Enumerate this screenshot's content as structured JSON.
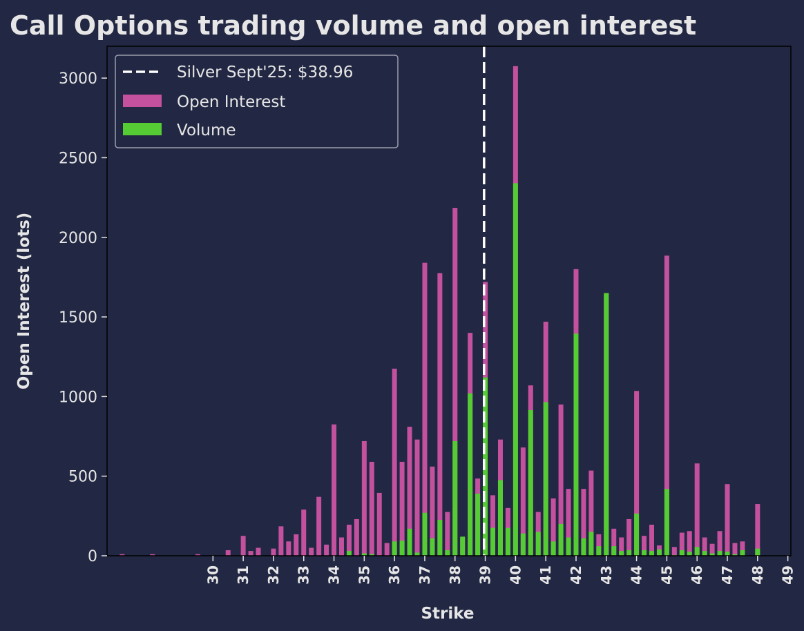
{
  "chart_data": {
    "type": "bar",
    "title": "Call Options trading volume and open interest",
    "xlabel": "Strike",
    "ylabel": "Open Interest (lots)",
    "xlim": [
      26.5,
      49.1
    ],
    "ylim": [
      0,
      3200
    ],
    "xticks": [
      30,
      31,
      32,
      33,
      34,
      35,
      36,
      37,
      38,
      39,
      40,
      41,
      42,
      43,
      44,
      45,
      46,
      47,
      48,
      49
    ],
    "yticks": [
      0,
      500,
      1000,
      1500,
      2000,
      2500,
      3000
    ],
    "grid": false,
    "legend_position": "top-left",
    "reference_line": {
      "label": "Silver Sept'25: $38.96",
      "x": 38.96,
      "color": "#ffffff"
    },
    "colors": {
      "open_interest": "#c3519e",
      "volume": "#55cc33",
      "background": "#222743",
      "text": "#e6e6e6"
    },
    "x": [
      27,
      28,
      29.5,
      30.5,
      31,
      31.25,
      31.5,
      32,
      32.25,
      32.5,
      32.75,
      33,
      33.25,
      33.5,
      33.75,
      34,
      34.25,
      34.5,
      34.75,
      35,
      35.25,
      35.5,
      35.75,
      36,
      36.25,
      36.5,
      36.75,
      37,
      37.25,
      37.5,
      37.75,
      38,
      38.25,
      38.5,
      38.75,
      39,
      39.25,
      39.5,
      39.75,
      40,
      40.25,
      40.5,
      40.75,
      41,
      41.25,
      41.5,
      41.75,
      42,
      42.25,
      42.5,
      42.75,
      43,
      43.25,
      43.5,
      43.75,
      44,
      44.25,
      44.5,
      44.75,
      45,
      45.25,
      45.5,
      45.75,
      46,
      46.25,
      46.5,
      46.75,
      47,
      47.25,
      47.5,
      48
    ],
    "series": [
      {
        "name": "Open Interest",
        "values": [
          10,
          10,
          10,
          35,
          125,
          30,
          50,
          45,
          185,
          90,
          135,
          290,
          50,
          370,
          70,
          825,
          115,
          195,
          230,
          720,
          590,
          395,
          80,
          1175,
          590,
          810,
          730,
          1840,
          560,
          1775,
          275,
          2185,
          115,
          1400,
          485,
          1720,
          380,
          730,
          300,
          3075,
          680,
          1070,
          275,
          1470,
          360,
          950,
          420,
          1800,
          420,
          535,
          135,
          1650,
          170,
          115,
          230,
          1035,
          125,
          195,
          65,
          1885,
          55,
          145,
          155,
          580,
          115,
          75,
          155,
          450,
          80,
          90,
          325
        ]
      },
      {
        "name": "Volume",
        "values": [
          0,
          0,
          0,
          0,
          0,
          0,
          0,
          0,
          0,
          0,
          0,
          0,
          0,
          0,
          0,
          0,
          0,
          30,
          0,
          15,
          10,
          0,
          0,
          90,
          95,
          170,
          20,
          270,
          110,
          225,
          35,
          720,
          120,
          1020,
          390,
          1120,
          175,
          475,
          175,
          2340,
          140,
          915,
          150,
          965,
          90,
          200,
          115,
          1395,
          110,
          150,
          60,
          1650,
          60,
          30,
          35,
          265,
          35,
          30,
          40,
          420,
          5,
          35,
          25,
          55,
          30,
          15,
          30,
          25,
          10,
          35,
          45
        ]
      }
    ]
  }
}
